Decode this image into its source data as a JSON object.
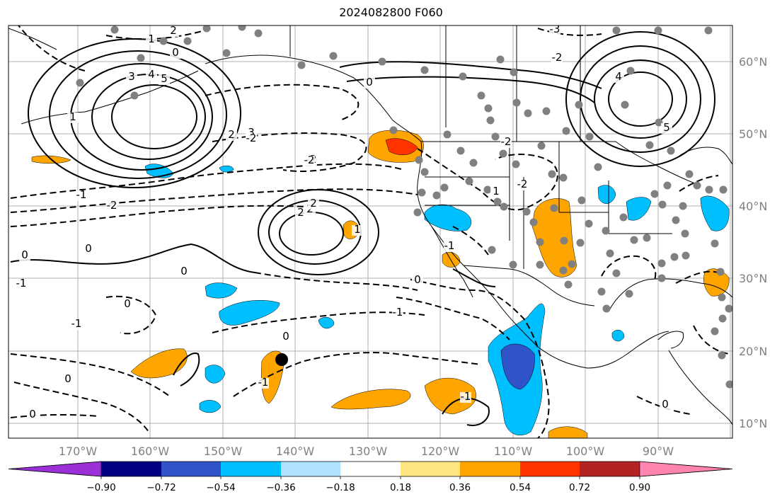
{
  "title": "2024082800 F060",
  "lon_labels": [
    "170°W",
    "160°W",
    "150°W",
    "140°W",
    "130°W",
    "120°W",
    "110°W",
    "100°W",
    "90°W"
  ],
  "lat_labels": [
    "60°N",
    "50°N",
    "40°N",
    "30°N",
    "20°N",
    "10°N"
  ],
  "colorbar": {
    "colors": [
      "#9b30d9",
      "#000080",
      "#3153c9",
      "#00bfff",
      "#afe3ff",
      "#ffffff",
      "#ffe680",
      "#ffa500",
      "#ff3300",
      "#b22222",
      "#ff85b0"
    ],
    "tick_labels": [
      "−0.90",
      "−0.72",
      "−0.54",
      "−0.36",
      "−0.18",
      "0.18",
      "0.36",
      "0.54",
      "0.72",
      "0.90"
    ]
  },
  "contour_labels": [
    "1",
    "2",
    "0",
    "3",
    "4",
    "5",
    "-2",
    "2",
    "-3",
    "-2",
    "-1",
    "0",
    "-2",
    "-1",
    "-2",
    "1",
    "2",
    "2",
    "0",
    "1",
    "-2",
    "4",
    "5",
    "-2",
    "2",
    "3",
    "-2",
    "1",
    "0",
    "0",
    "-1",
    "-1",
    "0",
    "0",
    "-1",
    "0",
    "0",
    "0",
    "-1",
    "0",
    "-1"
  ],
  "colors": {
    "land_line": "#000000",
    "grid": "#b0b0b0",
    "station": "#808080",
    "tick_text": "#808080"
  }
}
